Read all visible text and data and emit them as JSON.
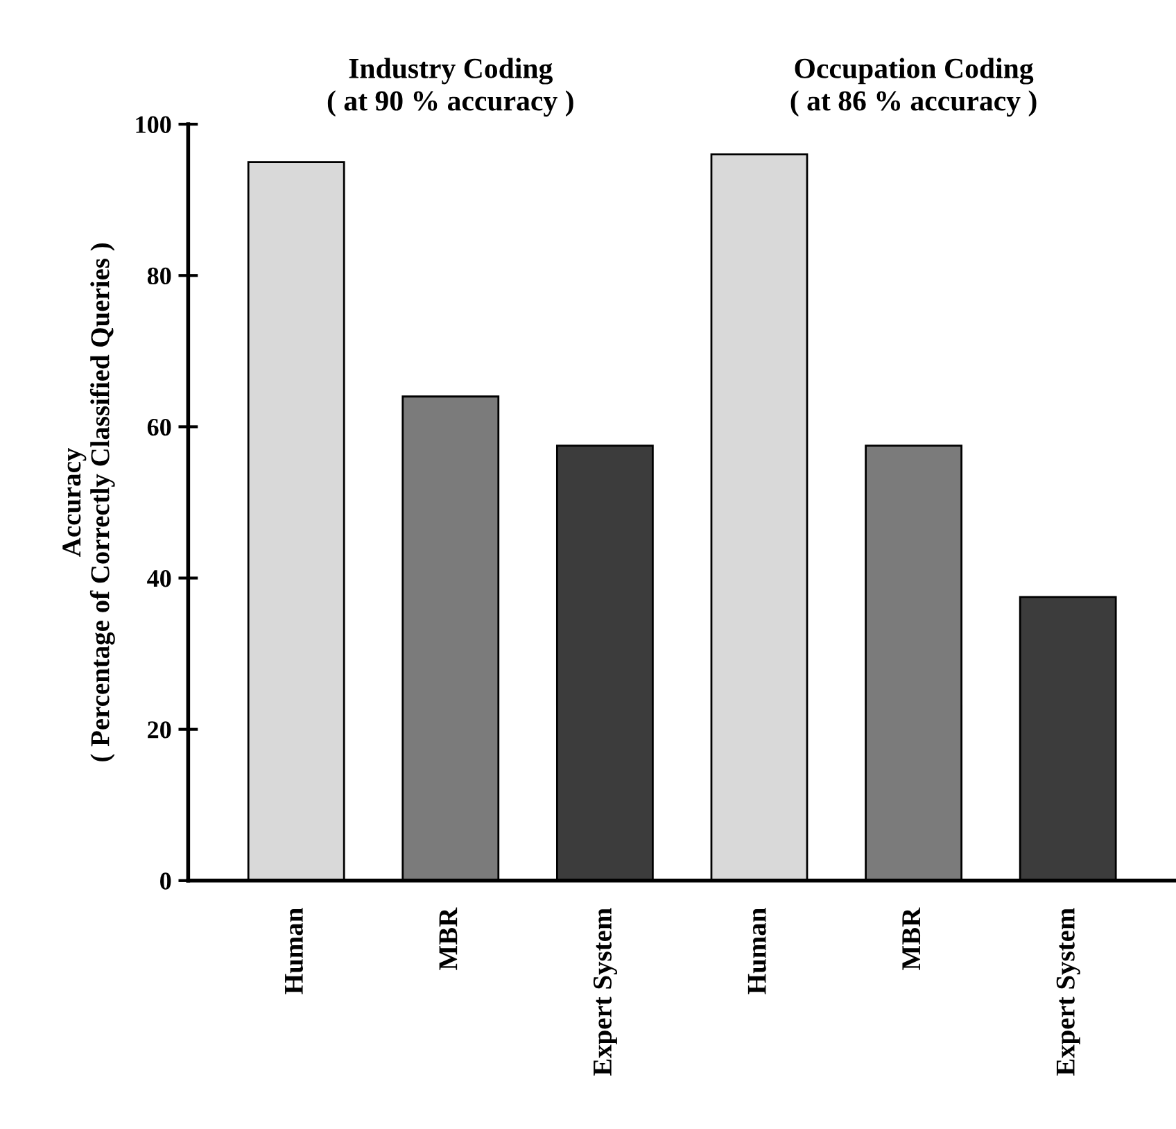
{
  "chart_data": {
    "type": "bar",
    "ylabel": "Accuracy\n( Percentage of Correctly Classified Queries )",
    "annotations": [
      "Industry Coding\n( at 90 % accuracy )",
      "Occupation Coding\n( at 86 % accuracy )"
    ],
    "categories": [
      "Human",
      "MBR",
      "Expert System",
      "Human",
      "MBR",
      "Expert System"
    ],
    "values": [
      95,
      64,
      57.5,
      96,
      57.5,
      37.5
    ],
    "colors": [
      "#d9d9d9",
      "#7b7b7b",
      "#3c3c3c",
      "#d9d9d9",
      "#7b7b7b",
      "#3c3c3c"
    ],
    "ylim": [
      0,
      100
    ],
    "yticks": [
      0,
      20,
      40,
      60,
      80,
      100
    ],
    "grid": false
  }
}
